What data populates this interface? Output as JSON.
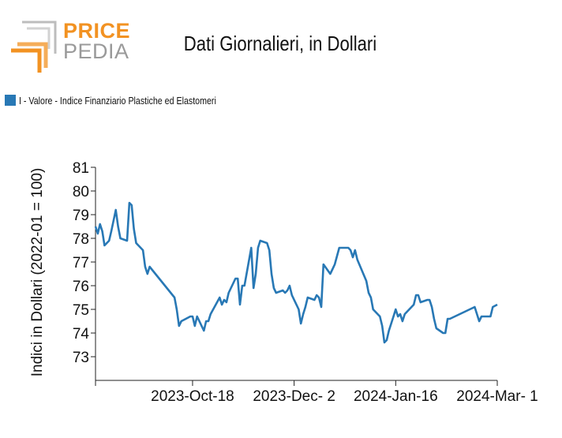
{
  "logo": {
    "word_top": "PRICE",
    "word_bottom": "PEDIA",
    "accent": "#f29222",
    "grey": "#9a9a9a"
  },
  "title": "Dati Giornalieri, in Dollari",
  "legend": {
    "label": "I - Valore - Indice Finanziario Plastiche ed Elastomeri",
    "color": "#2878b5"
  },
  "chart_data": {
    "type": "line",
    "title": "Dati Giornalieri, in Dollari",
    "ylabel": "Indici in Dollari (2022-01 = 100)",
    "xlabel": "",
    "ylim": [
      72,
      81
    ],
    "yticks": [
      73,
      74,
      75,
      76,
      77,
      78,
      79,
      80,
      81
    ],
    "x_range": [
      "2023-09-05",
      "2024-03-01"
    ],
    "xticks": [
      {
        "date": "2023-10-18",
        "label": "2023-Oct-18"
      },
      {
        "date": "2023-12-02",
        "label": "2023-Dec- 2"
      },
      {
        "date": "2024-01-16",
        "label": "2024-Jan-16"
      },
      {
        "date": "2024-03-01",
        "label": "2024-Mar- 1"
      }
    ],
    "series": [
      {
        "name": "I - Valore - Indice Finanziario Plastiche ed Elastomeri",
        "color": "#2878b5",
        "points": [
          [
            "2023-09-05",
            78.5
          ],
          [
            "2023-09-06",
            78.2
          ],
          [
            "2023-09-07",
            78.6
          ],
          [
            "2023-09-08",
            78.3
          ],
          [
            "2023-09-09",
            77.7
          ],
          [
            "2023-09-11",
            77.9
          ],
          [
            "2023-09-12",
            78.3
          ],
          [
            "2023-09-14",
            79.2
          ],
          [
            "2023-09-15",
            78.5
          ],
          [
            "2023-09-16",
            78.0
          ],
          [
            "2023-09-19",
            77.9
          ],
          [
            "2023-09-20",
            79.5
          ],
          [
            "2023-09-21",
            79.4
          ],
          [
            "2023-09-22",
            78.4
          ],
          [
            "2023-09-23",
            77.8
          ],
          [
            "2023-09-26",
            77.5
          ],
          [
            "2023-09-27",
            76.8
          ],
          [
            "2023-09-28",
            76.5
          ],
          [
            "2023-09-29",
            76.8
          ],
          [
            "2023-10-10",
            75.5
          ],
          [
            "2023-10-11",
            75.0
          ],
          [
            "2023-10-12",
            74.3
          ],
          [
            "2023-10-13",
            74.5
          ],
          [
            "2023-10-17",
            74.7
          ],
          [
            "2023-10-18",
            74.7
          ],
          [
            "2023-10-19",
            74.3
          ],
          [
            "2023-10-20",
            74.7
          ],
          [
            "2023-10-23",
            74.1
          ],
          [
            "2023-10-24",
            74.5
          ],
          [
            "2023-10-25",
            74.5
          ],
          [
            "2023-10-26",
            74.8
          ],
          [
            "2023-10-30",
            75.5
          ],
          [
            "2023-10-31",
            75.2
          ],
          [
            "2023-11-01",
            75.4
          ],
          [
            "2023-11-02",
            75.3
          ],
          [
            "2023-11-03",
            75.7
          ],
          [
            "2023-11-06",
            76.3
          ],
          [
            "2023-11-07",
            76.3
          ],
          [
            "2023-11-08",
            75.2
          ],
          [
            "2023-11-09",
            76.0
          ],
          [
            "2023-11-10",
            76.0
          ],
          [
            "2023-11-13",
            77.6
          ],
          [
            "2023-11-14",
            75.9
          ],
          [
            "2023-11-15",
            76.5
          ],
          [
            "2023-11-16",
            77.6
          ],
          [
            "2023-11-17",
            77.9
          ],
          [
            "2023-11-20",
            77.8
          ],
          [
            "2023-11-21",
            77.5
          ],
          [
            "2023-11-22",
            76.5
          ],
          [
            "2023-11-23",
            75.9
          ],
          [
            "2023-11-24",
            75.7
          ],
          [
            "2023-11-27",
            75.8
          ],
          [
            "2023-11-28",
            75.7
          ],
          [
            "2023-11-29",
            75.8
          ],
          [
            "2023-11-30",
            76.0
          ],
          [
            "2023-12-01",
            75.6
          ],
          [
            "2023-12-04",
            75.0
          ],
          [
            "2023-12-05",
            74.4
          ],
          [
            "2023-12-06",
            74.8
          ],
          [
            "2023-12-07",
            75.1
          ],
          [
            "2023-12-08",
            75.5
          ],
          [
            "2023-12-11",
            75.4
          ],
          [
            "2023-12-12",
            75.6
          ],
          [
            "2023-12-13",
            75.5
          ],
          [
            "2023-12-14",
            75.1
          ],
          [
            "2023-12-15",
            76.9
          ],
          [
            "2023-12-18",
            76.5
          ],
          [
            "2023-12-19",
            76.7
          ],
          [
            "2023-12-20",
            76.9
          ],
          [
            "2023-12-22",
            77.6
          ],
          [
            "2023-12-26",
            77.6
          ],
          [
            "2023-12-27",
            77.5
          ],
          [
            "2023-12-28",
            77.2
          ],
          [
            "2023-12-29",
            77.5
          ],
          [
            "2023-12-30",
            77.1
          ],
          [
            "2024-01-03",
            76.2
          ],
          [
            "2024-01-04",
            75.7
          ],
          [
            "2024-01-05",
            75.5
          ],
          [
            "2024-01-06",
            75.0
          ],
          [
            "2024-01-09",
            74.7
          ],
          [
            "2024-01-10",
            74.3
          ],
          [
            "2024-01-11",
            73.6
          ],
          [
            "2024-01-12",
            73.7
          ],
          [
            "2024-01-13",
            74.1
          ],
          [
            "2024-01-15",
            74.7
          ],
          [
            "2024-01-16",
            75.0
          ],
          [
            "2024-01-17",
            74.7
          ],
          [
            "2024-01-18",
            74.8
          ],
          [
            "2024-01-19",
            74.5
          ],
          [
            "2024-01-20",
            74.8
          ],
          [
            "2024-01-24",
            75.2
          ],
          [
            "2024-01-25",
            75.6
          ],
          [
            "2024-01-26",
            75.6
          ],
          [
            "2024-01-27",
            75.3
          ],
          [
            "2024-01-30",
            75.4
          ],
          [
            "2024-01-31",
            75.4
          ],
          [
            "2024-02-01",
            75.1
          ],
          [
            "2024-02-02",
            74.6
          ],
          [
            "2024-02-03",
            74.2
          ],
          [
            "2024-02-06",
            74.0
          ],
          [
            "2024-02-07",
            74.0
          ],
          [
            "2024-02-08",
            74.6
          ],
          [
            "2024-02-09",
            74.6
          ],
          [
            "2024-02-20",
            75.1
          ],
          [
            "2024-02-22",
            74.5
          ],
          [
            "2024-02-23",
            74.7
          ],
          [
            "2024-02-26",
            74.7
          ],
          [
            "2024-02-27",
            74.7
          ],
          [
            "2024-02-28",
            75.1
          ],
          [
            "2024-03-01",
            75.2
          ]
        ]
      }
    ]
  }
}
